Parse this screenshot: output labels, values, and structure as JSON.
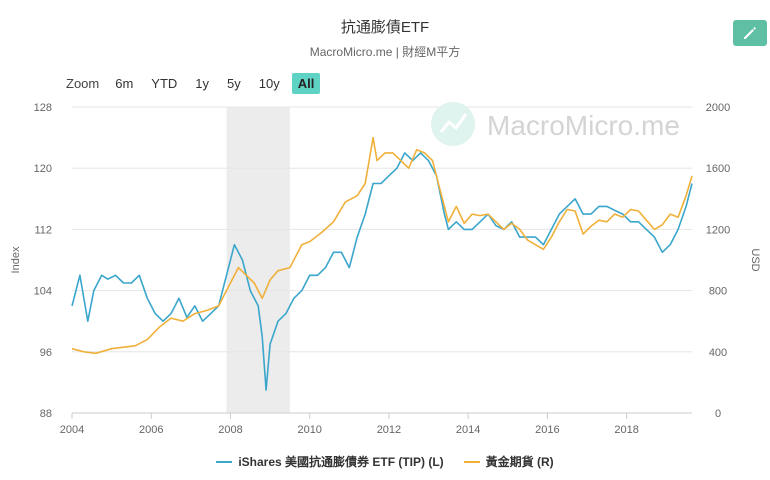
{
  "title": "抗通膨債ETF",
  "subtitle": "MacroMicro.me | 財經M平方",
  "watermark": "MacroMicro.me",
  "toolbar": {
    "edit_icon": "pencil-icon",
    "accent_color": "#5fbfa5"
  },
  "zoom": {
    "label": "Zoom",
    "options": [
      "6m",
      "YTD",
      "1y",
      "5y",
      "10y",
      "All"
    ],
    "selected": "All"
  },
  "chart_data": {
    "type": "line",
    "x_range": [
      2004.0,
      2019.65
    ],
    "x_ticks": [
      "2004",
      "2006",
      "2008",
      "2010",
      "2012",
      "2014",
      "2016",
      "2018"
    ],
    "y_left": {
      "label": "Index",
      "ylim": [
        88,
        128
      ],
      "ticks": [
        "88",
        "96",
        "104",
        "112",
        "120",
        "128"
      ]
    },
    "y_right": {
      "label": "USD",
      "ylim": [
        0,
        2000
      ],
      "ticks": [
        "0",
        "400",
        "800",
        "1200",
        "1600",
        "2000"
      ]
    },
    "shaded_region": [
      2007.9,
      2009.5
    ],
    "grid": true,
    "legend_position": "bottom",
    "series": [
      {
        "name": "iShares 美國抗通膨債券 ETF (TIP) (L)",
        "axis": "left",
        "color": "#3aa6cc",
        "x": [
          2004.0,
          2004.2,
          2004.4,
          2004.55,
          2004.75,
          2004.9,
          2005.1,
          2005.3,
          2005.5,
          2005.7,
          2005.9,
          2006.1,
          2006.3,
          2006.5,
          2006.7,
          2006.9,
          2007.1,
          2007.3,
          2007.5,
          2007.7,
          2007.9,
          2008.1,
          2008.3,
          2008.5,
          2008.7,
          2008.8,
          2008.9,
          2009.0,
          2009.2,
          2009.4,
          2009.6,
          2009.8,
          2010.0,
          2010.2,
          2010.4,
          2010.6,
          2010.8,
          2011.0,
          2011.2,
          2011.4,
          2011.6,
          2011.8,
          2012.0,
          2012.2,
          2012.4,
          2012.6,
          2012.8,
          2013.0,
          2013.2,
          2013.4,
          2013.5,
          2013.7,
          2013.9,
          2014.1,
          2014.3,
          2014.5,
          2014.7,
          2014.9,
          2015.1,
          2015.3,
          2015.5,
          2015.7,
          2015.9,
          2016.1,
          2016.3,
          2016.5,
          2016.7,
          2016.9,
          2017.1,
          2017.3,
          2017.5,
          2017.7,
          2017.9,
          2018.1,
          2018.3,
          2018.5,
          2018.7,
          2018.9,
          2019.1,
          2019.3,
          2019.5,
          2019.65
        ],
        "values": [
          102,
          106,
          100,
          104,
          106,
          105.5,
          106,
          105,
          105,
          106,
          103,
          101,
          100,
          101,
          103,
          100.5,
          102,
          100,
          101,
          102,
          106,
          110,
          108,
          104,
          102,
          98,
          91,
          97,
          100,
          101,
          103,
          104,
          106,
          106,
          107,
          109,
          109,
          107,
          111,
          114,
          118,
          118,
          119,
          120,
          122,
          121,
          122,
          121,
          119,
          114,
          112,
          113,
          112,
          112,
          113,
          114,
          112.5,
          112,
          113,
          111,
          111,
          111,
          110,
          112,
          114,
          115,
          116,
          114,
          114,
          115,
          115,
          114.5,
          114,
          113,
          113,
          112,
          111,
          109,
          110,
          112,
          115,
          118
        ]
      },
      {
        "name": "黃金期貨 (R)",
        "axis": "right",
        "color": "#f0b03a",
        "x": [
          2004.0,
          2004.3,
          2004.6,
          2005.0,
          2005.3,
          2005.6,
          2005.9,
          2006.2,
          2006.5,
          2006.8,
          2007.1,
          2007.4,
          2007.7,
          2007.9,
          2008.2,
          2008.4,
          2008.6,
          2008.8,
          2009.0,
          2009.2,
          2009.5,
          2009.8,
          2010.0,
          2010.3,
          2010.6,
          2010.9,
          2011.2,
          2011.4,
          2011.6,
          2011.7,
          2011.9,
          2012.1,
          2012.3,
          2012.5,
          2012.7,
          2012.9,
          2013.1,
          2013.3,
          2013.5,
          2013.7,
          2013.9,
          2014.1,
          2014.3,
          2014.5,
          2014.7,
          2014.9,
          2015.1,
          2015.3,
          2015.5,
          2015.7,
          2015.9,
          2016.1,
          2016.3,
          2016.5,
          2016.7,
          2016.9,
          2017.1,
          2017.3,
          2017.5,
          2017.7,
          2017.9,
          2018.1,
          2018.3,
          2018.5,
          2018.7,
          2018.9,
          2019.1,
          2019.3,
          2019.5,
          2019.65
        ],
        "values": [
          420,
          400,
          390,
          420,
          430,
          440,
          480,
          560,
          620,
          600,
          650,
          670,
          700,
          800,
          950,
          900,
          850,
          750,
          870,
          930,
          950,
          1100,
          1120,
          1180,
          1250,
          1380,
          1420,
          1500,
          1800,
          1650,
          1700,
          1700,
          1650,
          1600,
          1720,
          1700,
          1650,
          1450,
          1250,
          1350,
          1240,
          1300,
          1290,
          1300,
          1250,
          1200,
          1240,
          1200,
          1130,
          1100,
          1070,
          1150,
          1250,
          1330,
          1320,
          1170,
          1220,
          1260,
          1250,
          1300,
          1280,
          1330,
          1320,
          1260,
          1200,
          1230,
          1300,
          1280,
          1420,
          1550
        ]
      }
    ]
  }
}
